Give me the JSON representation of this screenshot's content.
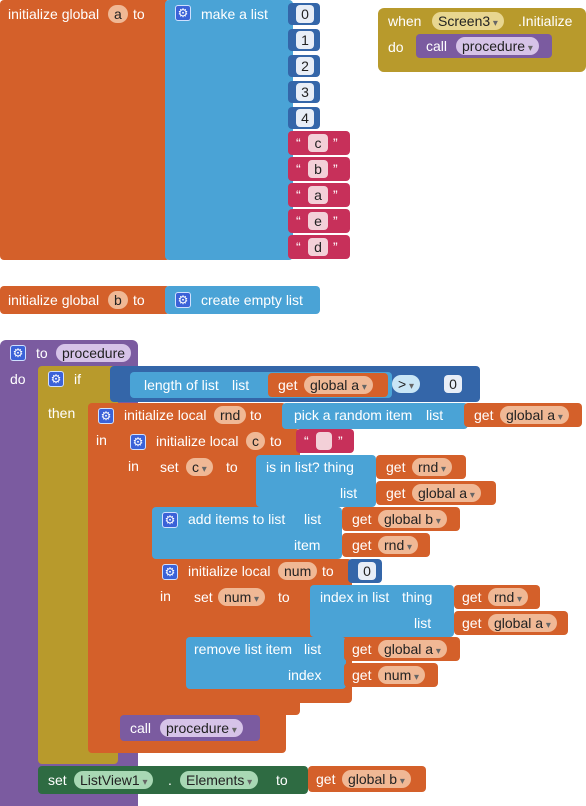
{
  "global_a": {
    "prefix": "initialize global",
    "name": "a",
    "to": "to",
    "list_label": "make a list",
    "numbers": [
      "0",
      "1",
      "2",
      "3",
      "4"
    ],
    "letters": [
      "c",
      "b",
      "a",
      "e",
      "d"
    ]
  },
  "global_b": {
    "prefix": "initialize global",
    "name": "b",
    "to": "to",
    "list_label": "create empty list"
  },
  "event": {
    "when": "when",
    "component": "Screen3",
    "event_name": ".Initialize",
    "do": "do",
    "call": "call",
    "procedure": "procedure"
  },
  "proc": {
    "to": "to",
    "name": "procedure",
    "do": "do",
    "if": "if",
    "then": "then",
    "length_of_list": "length of list",
    "list": "list",
    "get": "get",
    "global_a": "global a",
    "global_b": "global b",
    "compare_op": ">",
    "zero": "0",
    "init_local": "initialize local",
    "rnd": "rnd",
    "c": "c",
    "num": "num",
    "in": "in",
    "pick_random": "pick a random item",
    "set": "set",
    "is_in_list": "is in list? thing",
    "add_items": "add items to list",
    "item": "item",
    "index_in_list": "index in list",
    "thing": "thing",
    "remove_item": "remove list item",
    "index": "index",
    "call": "call",
    "procedure": "procedure",
    "listview": "ListView1",
    "elements": "Elements",
    "dot": "."
  }
}
